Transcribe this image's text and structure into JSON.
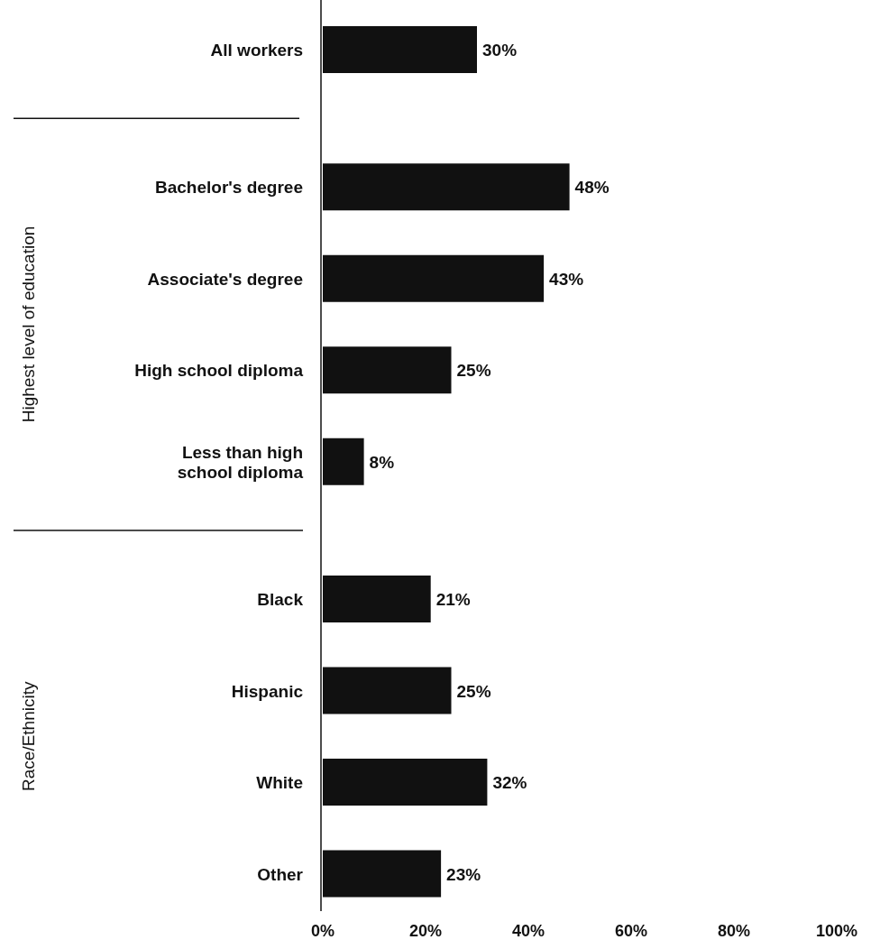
{
  "chart_data": {
    "type": "bar",
    "orientation": "horizontal",
    "categories": [
      "All workers",
      "Bachelor's degree",
      "Associate's degree",
      "High school diploma",
      "Less than high school diploma",
      "Black",
      "Hispanic",
      "White",
      "Other"
    ],
    "values": [
      30,
      48,
      43,
      25,
      8,
      21,
      25,
      32,
      23
    ],
    "value_labels": [
      "30%",
      "48%",
      "43%",
      "25%",
      "8%",
      "21%",
      "25%",
      "32%",
      "23%"
    ],
    "color": "#111111",
    "xlim": [
      0,
      100
    ],
    "xticks": [
      {
        "value": 0,
        "label": "0%"
      },
      {
        "value": 20,
        "label": "20%"
      },
      {
        "value": 40,
        "label": "40%"
      },
      {
        "value": 60,
        "label": "60%"
      },
      {
        "value": 80,
        "label": "80%"
      },
      {
        "value": 100,
        "label": "100%"
      }
    ],
    "annotations": [
      "Highest level of education",
      "Race/Ethnicity"
    ],
    "grid": false
  }
}
